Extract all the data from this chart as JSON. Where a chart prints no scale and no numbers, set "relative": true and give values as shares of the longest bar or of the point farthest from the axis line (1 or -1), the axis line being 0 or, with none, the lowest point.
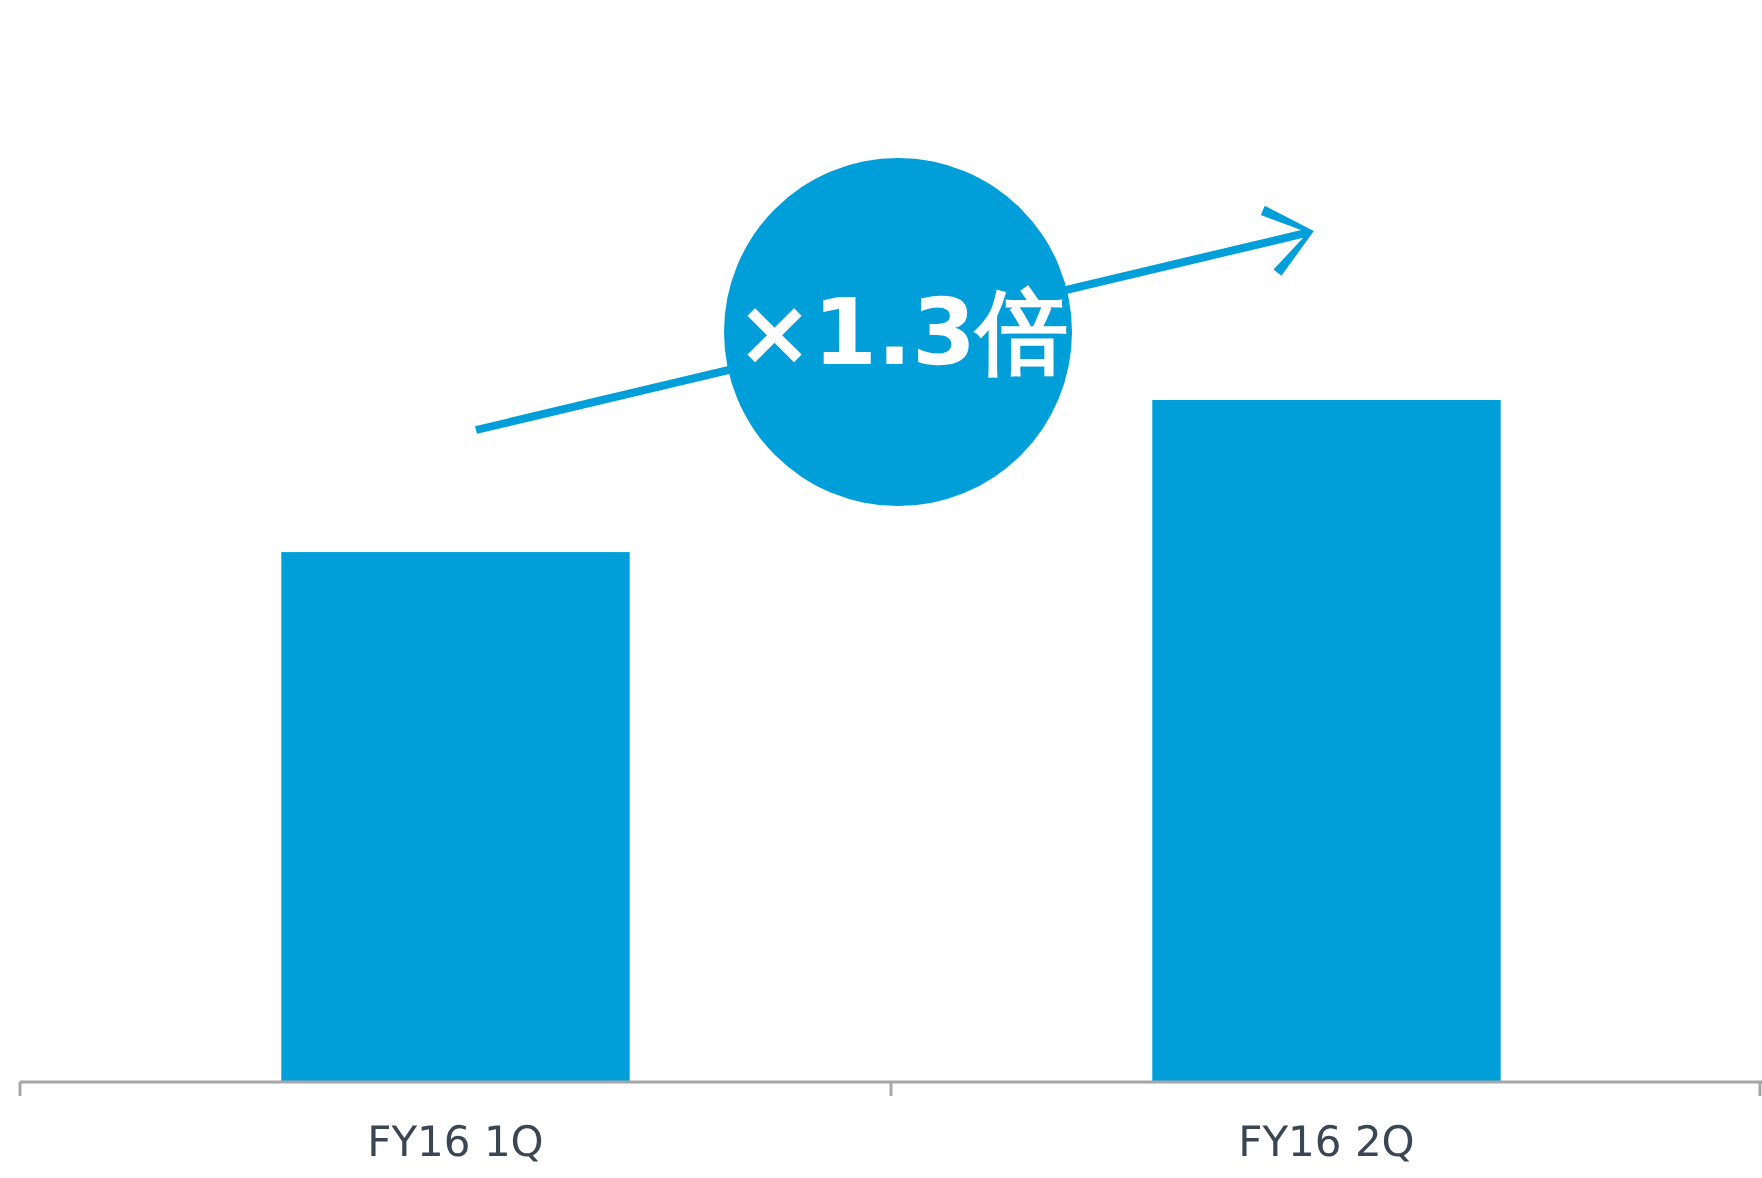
{
  "chart_data": {
    "type": "bar",
    "relative": true,
    "categories": [
      "FY16 1Q",
      "FY16 2Q"
    ],
    "values": [
      0.777,
      1
    ],
    "color": "#009fda",
    "annotations": [
      "×1.3倍"
    ]
  }
}
